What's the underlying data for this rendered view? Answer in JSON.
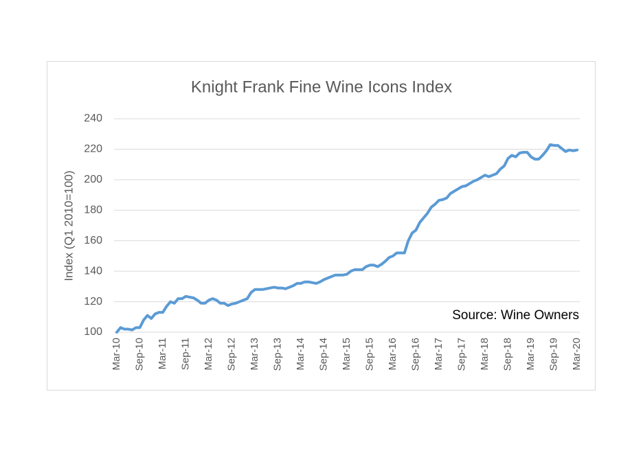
{
  "chart_data": {
    "type": "line",
    "title": "Knight Frank Fine Wine Icons Index",
    "y_label": "Index (Q1 2010=100)",
    "annotation": "Source: Wine Owners",
    "categories": [
      "Mar-10",
      null,
      null,
      null,
      null,
      null,
      "Sep-10",
      null,
      null,
      null,
      null,
      null,
      "Mar-11",
      null,
      null,
      null,
      null,
      null,
      "Sep-11",
      null,
      null,
      null,
      null,
      null,
      "Mar-12",
      null,
      null,
      null,
      null,
      null,
      "Sep-12",
      null,
      null,
      null,
      null,
      null,
      "Mar-13",
      null,
      null,
      null,
      null,
      null,
      "Sep-13",
      null,
      null,
      null,
      null,
      null,
      "Mar-14",
      null,
      null,
      null,
      null,
      null,
      "Sep-14",
      null,
      null,
      null,
      null,
      null,
      "Mar-15",
      null,
      null,
      null,
      null,
      null,
      "Sep-15",
      null,
      null,
      null,
      null,
      null,
      "Mar-16",
      null,
      null,
      null,
      null,
      null,
      "Sep-16",
      null,
      null,
      null,
      null,
      null,
      "Mar-17",
      null,
      null,
      null,
      null,
      null,
      "Sep-17",
      null,
      null,
      null,
      null,
      null,
      "Mar-18",
      null,
      null,
      null,
      null,
      null,
      "Sep-18",
      null,
      null,
      null,
      null,
      null,
      "Mar-19",
      null,
      null,
      null,
      null,
      null,
      "Sep-19",
      null,
      null,
      null,
      null,
      null,
      "Mar-20"
    ],
    "values": [
      100,
      103,
      102,
      102,
      101.5,
      103,
      103,
      108,
      111,
      109,
      112,
      113,
      113,
      117,
      120,
      119,
      122,
      122,
      123.5,
      123,
      122.5,
      121,
      119,
      119,
      121,
      122,
      121,
      119,
      119,
      117.5,
      118.5,
      119,
      120,
      121,
      122,
      126,
      128,
      128,
      128,
      128.5,
      129,
      129.5,
      129,
      129,
      128.5,
      129.5,
      130.5,
      132,
      132,
      133,
      133,
      132.5,
      132,
      133,
      134.5,
      135.5,
      136.5,
      137.5,
      137.5,
      137.5,
      138,
      140,
      141,
      141,
      141,
      143,
      144,
      144,
      143,
      144.5,
      146.5,
      149,
      150,
      152,
      152,
      152,
      160,
      165,
      167,
      172,
      175,
      178,
      182,
      184,
      186.5,
      187,
      188,
      191,
      192.5,
      194,
      195.5,
      196,
      197.5,
      199,
      200,
      201.5,
      203,
      202,
      203,
      204,
      207,
      209,
      214,
      216,
      215,
      217.5,
      218,
      218,
      215,
      213.5,
      213.5,
      216,
      219,
      223,
      222.5,
      222.5,
      220.5,
      218.5,
      219.5,
      219,
      219.5
    ],
    "color": "#5b9bd5",
    "ylim": [
      100,
      240
    ],
    "yticks": [
      100,
      120,
      140,
      160,
      180,
      200,
      220,
      240
    ],
    "grid": true
  }
}
